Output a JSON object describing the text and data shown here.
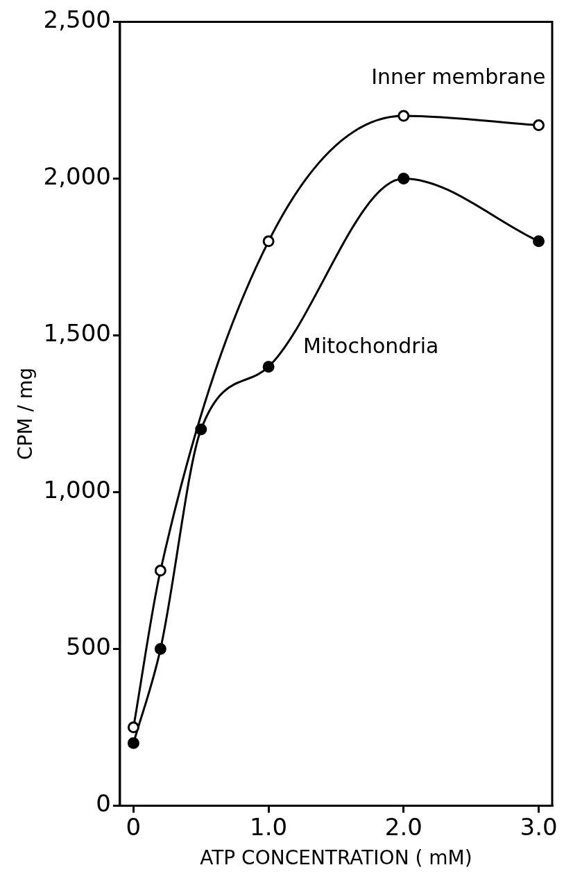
{
  "chart_data": {
    "type": "line",
    "xlabel": "ATP CONCENTRATION ( mM)",
    "ylabel": "CPM / mg",
    "xlim": [
      -0.1,
      3.1
    ],
    "ylim": [
      0,
      2500
    ],
    "xticks": [
      0,
      {
        "value": 1,
        "label": "1.0"
      },
      {
        "value": 2,
        "label": "2.0"
      },
      {
        "value": 3,
        "label": "3.0"
      }
    ],
    "yticks": [
      0,
      500,
      {
        "value": 1000,
        "label": "1,000"
      },
      {
        "value": 1500,
        "label": "1,500"
      },
      {
        "value": 2000,
        "label": "2,000"
      },
      {
        "value": 2500,
        "label": "2,500"
      }
    ],
    "grid": false,
    "legend": false,
    "marker": "circle",
    "line_style": "solid",
    "series": [
      {
        "name": "Inner membrane",
        "color": "#000000",
        "x": [
          0,
          0.2,
          1,
          2,
          3
        ],
        "values": [
          250,
          750,
          1800,
          2200,
          2170
        ]
      },
      {
        "name": "Mitochondria",
        "color": "#000000",
        "x": [
          0,
          0.2,
          0.5,
          1,
          2,
          3
        ],
        "values": [
          200,
          500,
          1200,
          1400,
          2000,
          1800
        ]
      }
    ]
  }
}
